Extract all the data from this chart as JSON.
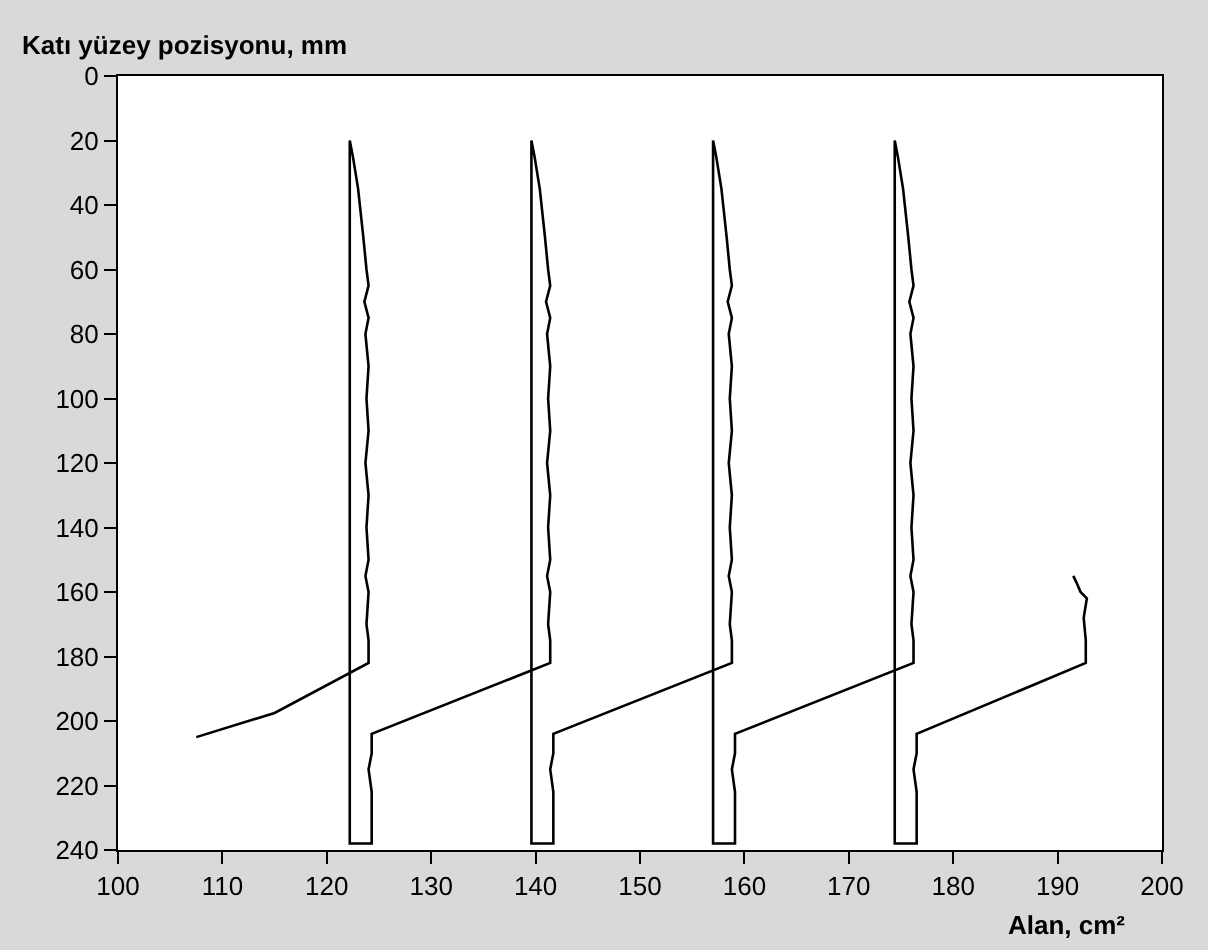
{
  "chart_data": {
    "type": "line",
    "ylabel": "Katı yüzey pozisyonu, mm",
    "xlabel": "Alan, cm²",
    "xlim": [
      100,
      200
    ],
    "xticks": [
      100,
      110,
      120,
      130,
      140,
      150,
      160,
      170,
      180,
      190,
      200
    ],
    "ylim": [
      240,
      0
    ],
    "yticks": [
      0,
      20,
      40,
      60,
      80,
      100,
      120,
      140,
      160,
      180,
      200,
      220,
      240
    ],
    "marker": "none",
    "line_style": "solid",
    "series": [
      {
        "color": "#000000",
        "x": [
          107.5,
          115.0,
          124.0,
          124.0,
          123.8,
          124.0,
          123.7,
          124.0,
          123.8,
          124.0,
          123.7,
          124.0,
          123.8,
          124.0,
          123.7,
          124.0,
          123.6,
          124.0,
          123.8,
          123.5,
          123.0,
          122.5,
          122.2,
          122.2,
          124.3,
          124.3,
          124.0,
          124.3,
          124.3,
          141.4,
          141.4,
          141.2,
          141.4,
          141.1,
          141.4,
          141.2,
          141.4,
          141.1,
          141.4,
          141.2,
          141.4,
          141.1,
          141.4,
          141.0,
          141.4,
          141.2,
          140.9,
          140.4,
          139.9,
          139.6,
          139.6,
          141.7,
          141.7,
          141.4,
          141.7,
          141.7,
          158.8,
          158.8,
          158.6,
          158.8,
          158.5,
          158.8,
          158.6,
          158.8,
          158.5,
          158.8,
          158.6,
          158.8,
          158.5,
          158.8,
          158.4,
          158.8,
          158.6,
          158.3,
          157.8,
          157.3,
          157.0,
          157.0,
          159.1,
          159.1,
          158.8,
          159.1,
          159.1,
          176.2,
          176.2,
          176.0,
          176.2,
          175.9,
          176.2,
          176.0,
          176.2,
          175.9,
          176.2,
          176.0,
          176.2,
          175.9,
          176.2,
          175.8,
          176.2,
          176.0,
          175.7,
          175.2,
          174.7,
          174.4,
          174.4,
          176.5,
          176.5,
          176.2,
          176.5,
          176.5,
          192.7,
          192.7,
          192.5,
          192.8,
          192.2,
          191.8,
          191.5
        ],
        "values": [
          205,
          197.5,
          182,
          175,
          170,
          160,
          155,
          150,
          140,
          130,
          120,
          110,
          100,
          90,
          80,
          75,
          70,
          65,
          60,
          50,
          35,
          25,
          20,
          238,
          238,
          222,
          215,
          210,
          204,
          182,
          175,
          170,
          160,
          155,
          150,
          140,
          130,
          120,
          110,
          100,
          90,
          80,
          75,
          70,
          65,
          60,
          50,
          35,
          25,
          20,
          238,
          238,
          222,
          215,
          210,
          204,
          182,
          175,
          170,
          160,
          155,
          150,
          140,
          130,
          120,
          110,
          100,
          90,
          80,
          75,
          70,
          65,
          60,
          50,
          35,
          25,
          20,
          238,
          238,
          222,
          215,
          210,
          204,
          182,
          175,
          170,
          160,
          155,
          150,
          140,
          130,
          120,
          110,
          100,
          90,
          80,
          75,
          70,
          65,
          60,
          50,
          35,
          25,
          20,
          238,
          238,
          222,
          215,
          210,
          204,
          182,
          175,
          168,
          162,
          160,
          157,
          155
        ]
      }
    ]
  }
}
